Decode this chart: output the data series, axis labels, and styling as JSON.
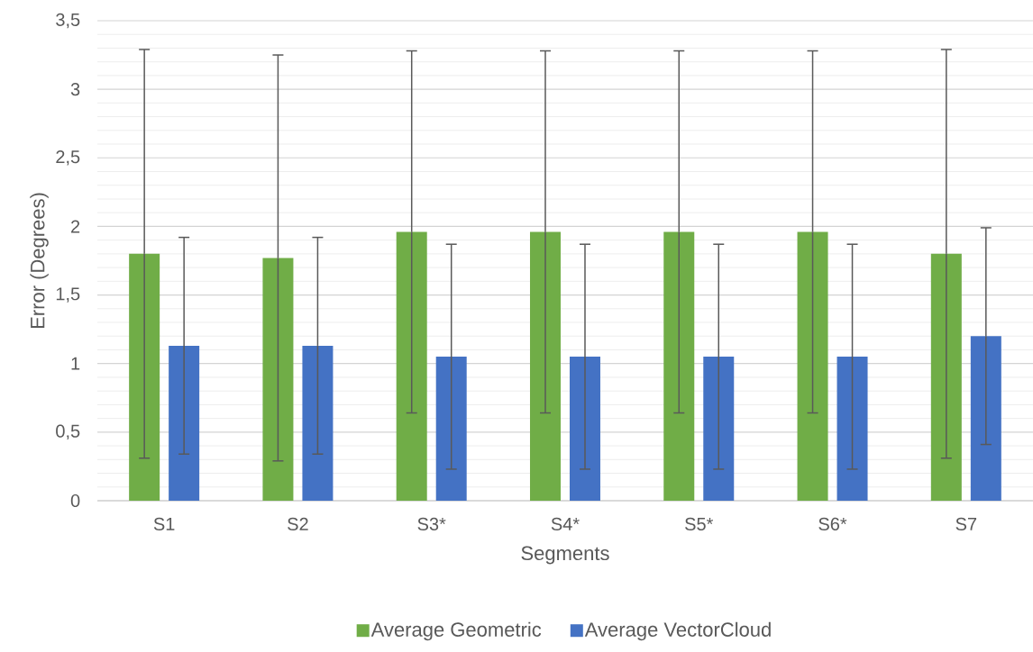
{
  "chart_data": {
    "type": "bar",
    "xlabel": "Segments",
    "ylabel": "Error (Degrees)",
    "categories": [
      "S1",
      "S2",
      "S3*",
      "S4*",
      "S5*",
      "S6*",
      "S7"
    ],
    "series": [
      {
        "name": "Average Geometric",
        "color": "#70ad47",
        "values": [
          1.8,
          1.77,
          1.96,
          1.96,
          1.96,
          1.96,
          1.8
        ],
        "errors": [
          1.49,
          1.48,
          1.32,
          1.32,
          1.32,
          1.32,
          1.49
        ]
      },
      {
        "name": "Average VectorCloud",
        "color": "#4472c4",
        "values": [
          1.13,
          1.13,
          1.05,
          1.05,
          1.05,
          1.05,
          1.2
        ],
        "errors": [
          0.79,
          0.79,
          0.82,
          0.82,
          0.82,
          0.82,
          0.79
        ]
      }
    ],
    "ylim": [
      0,
      3.5
    ],
    "yticks": [
      0,
      {
        "value": 0.5,
        "label": "0,5"
      },
      1,
      {
        "value": 1.5,
        "label": "1,5"
      },
      2,
      {
        "value": 2.5,
        "label": "2,5"
      },
      3,
      {
        "value": 3.5,
        "label": "3,5"
      }
    ],
    "grid": "y",
    "legend": "bottom"
  }
}
